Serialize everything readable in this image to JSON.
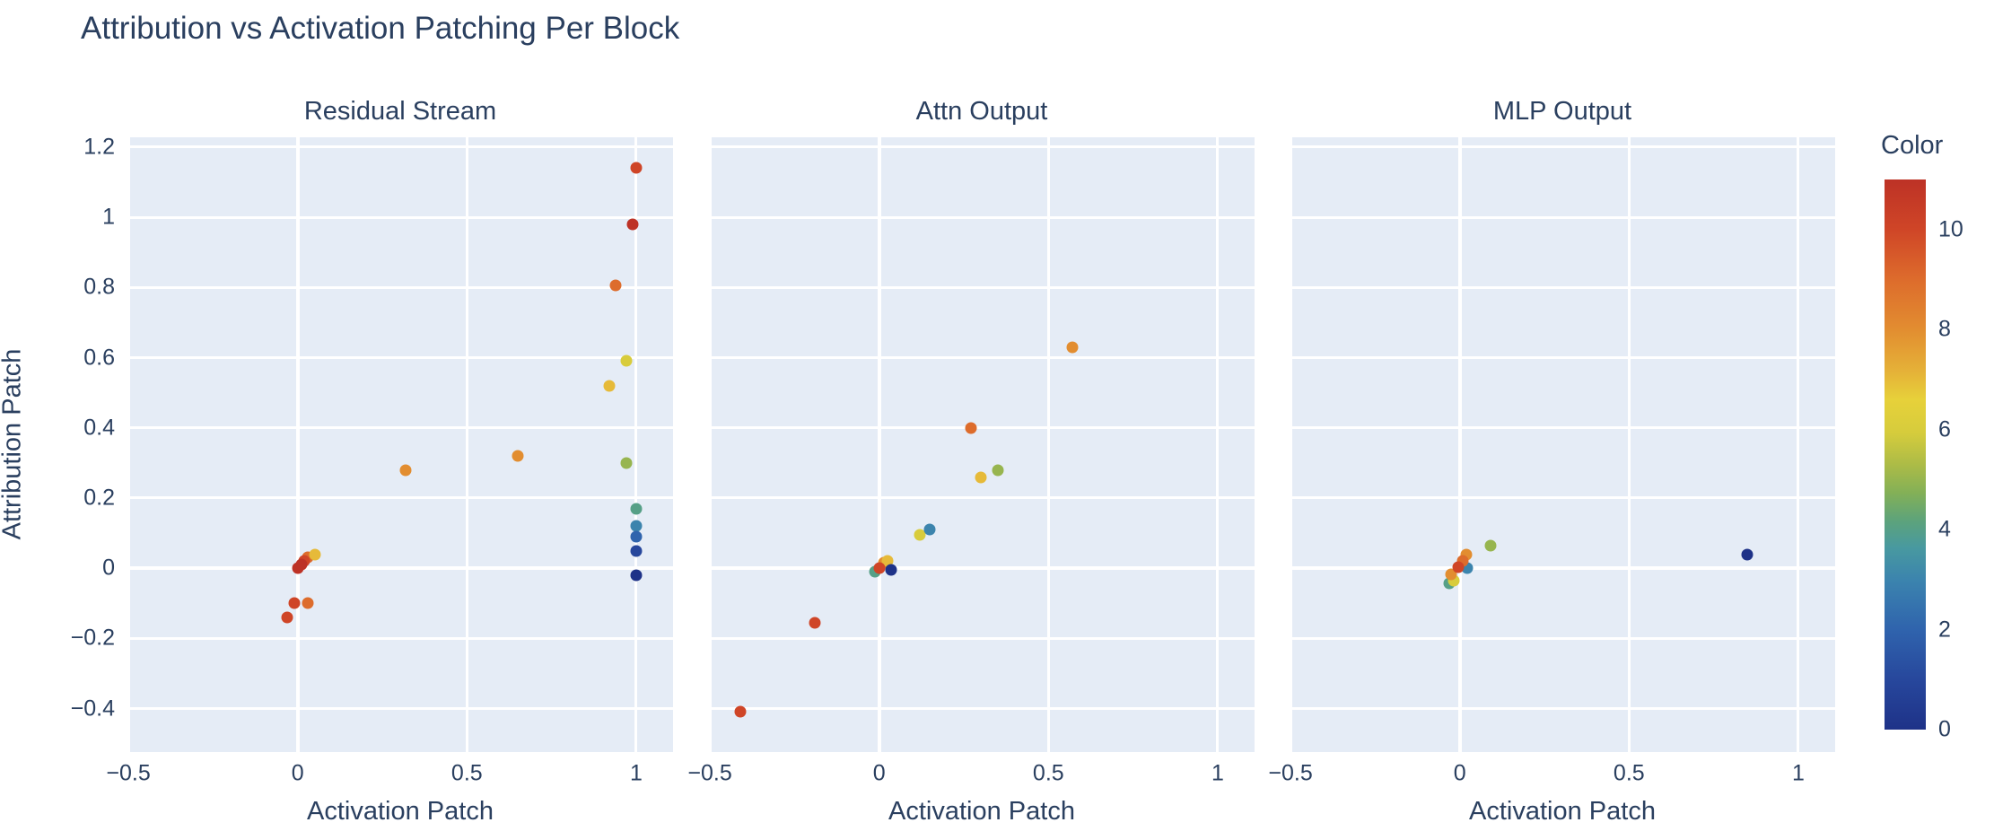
{
  "title": "Attribution vs Activation Patching Per Block",
  "chart_data": {
    "type": "scatter",
    "title": "Attribution vs Activation Patching Per Block",
    "xlabel": "Activation Patch",
    "ylabel": "Attribution Patch",
    "grid": true,
    "plot_bg": "#e5ecf6",
    "text_color": "#2a3f5f",
    "xlim": [
      -0.503,
      1.109
    ],
    "ylim": [
      -0.524,
      1.228
    ],
    "xticks": {
      "values": [
        -0.5,
        0,
        0.5,
        1
      ],
      "labels": [
        "−0.5",
        "0",
        "0.5",
        "1"
      ]
    },
    "yticks": {
      "values": [
        1.2,
        1,
        0.8,
        0.6,
        0.4,
        0.2,
        0,
        -0.2,
        -0.4
      ],
      "labels": [
        "1.2",
        "1",
        "0.8",
        "0.6",
        "0.4",
        "0.2",
        "0",
        "−0.2",
        "−0.4"
      ]
    },
    "colorbar": {
      "title": "Color",
      "vmin": 0,
      "vmax": 11,
      "tick_values": [
        0,
        2,
        4,
        6,
        8,
        10
      ],
      "tick_labels": [
        "0",
        "2",
        "4",
        "6",
        "8",
        "10"
      ],
      "stops": [
        {
          "frac": 0.0,
          "color": "#1e3288"
        },
        {
          "frac": 0.09,
          "color": "#27479c"
        },
        {
          "frac": 0.18,
          "color": "#2f63ad"
        },
        {
          "frac": 0.27,
          "color": "#3b83ae"
        },
        {
          "frac": 0.33,
          "color": "#4899a0"
        },
        {
          "frac": 0.38,
          "color": "#5da37b"
        },
        {
          "frac": 0.43,
          "color": "#83b057"
        },
        {
          "frac": 0.48,
          "color": "#abbb47"
        },
        {
          "frac": 0.54,
          "color": "#d6cc3c"
        },
        {
          "frac": 0.6,
          "color": "#e7d13a"
        },
        {
          "frac": 0.65,
          "color": "#e5b238"
        },
        {
          "frac": 0.73,
          "color": "#e28c30"
        },
        {
          "frac": 0.82,
          "color": "#dd6b2c"
        },
        {
          "frac": 0.91,
          "color": "#cf4527"
        },
        {
          "frac": 1.0,
          "color": "#bd3226"
        }
      ]
    },
    "subplots": [
      {
        "title": "Residual Stream",
        "points": [
          {
            "x": 1.0,
            "y": 1.14,
            "c": 10
          },
          {
            "x": 0.99,
            "y": 0.98,
            "c": 11
          },
          {
            "x": 0.94,
            "y": 0.805,
            "c": 9
          },
          {
            "x": 0.97,
            "y": 0.59,
            "c": 6
          },
          {
            "x": 0.92,
            "y": 0.52,
            "c": 7
          },
          {
            "x": 0.97,
            "y": 0.3,
            "c": 5
          },
          {
            "x": 1.0,
            "y": 0.17,
            "c": 4
          },
          {
            "x": 1.0,
            "y": 0.12,
            "c": 3
          },
          {
            "x": 1.0,
            "y": 0.09,
            "c": 2
          },
          {
            "x": 1.0,
            "y": 0.05,
            "c": 1
          },
          {
            "x": 1.0,
            "y": -0.02,
            "c": 0
          },
          {
            "x": 0.65,
            "y": 0.32,
            "c": 8
          },
          {
            "x": 0.32,
            "y": 0.28,
            "c": 8
          },
          {
            "x": 0.03,
            "y": 0.03,
            "c": 9
          },
          {
            "x": 0.02,
            "y": 0.02,
            "c": 10
          },
          {
            "x": 0.01,
            "y": 0.01,
            "c": 11
          },
          {
            "x": 0.0,
            "y": 0.0,
            "c": 11
          },
          {
            "x": 0.05,
            "y": 0.04,
            "c": 7
          },
          {
            "x": -0.01,
            "y": -0.1,
            "c": 10
          },
          {
            "x": 0.03,
            "y": -0.1,
            "c": 9
          },
          {
            "x": -0.03,
            "y": -0.14,
            "c": 10
          }
        ]
      },
      {
        "title": "Attn Output",
        "points": [
          {
            "x": -0.41,
            "y": -0.41,
            "c": 10
          },
          {
            "x": -0.19,
            "y": -0.155,
            "c": 10
          },
          {
            "x": 0.57,
            "y": 0.63,
            "c": 8
          },
          {
            "x": 0.27,
            "y": 0.4,
            "c": 9
          },
          {
            "x": 0.3,
            "y": 0.26,
            "c": 7
          },
          {
            "x": 0.35,
            "y": 0.28,
            "c": 5
          },
          {
            "x": 0.12,
            "y": 0.095,
            "c": 6
          },
          {
            "x": 0.15,
            "y": 0.11,
            "c": 3
          },
          {
            "x": -0.013,
            "y": -0.01,
            "c": 4
          },
          {
            "x": 0.015,
            "y": 0.016,
            "c": 8
          },
          {
            "x": 0.025,
            "y": 0.022,
            "c": 7
          },
          {
            "x": 0.0,
            "y": 0.0,
            "c": 10
          },
          {
            "x": 0.035,
            "y": -0.005,
            "c": 0
          }
        ]
      },
      {
        "title": "MLP Output",
        "points": [
          {
            "x": 0.85,
            "y": 0.04,
            "c": 0
          },
          {
            "x": 0.09,
            "y": 0.065,
            "c": 5
          },
          {
            "x": -0.032,
            "y": -0.043,
            "c": 4
          },
          {
            "x": -0.019,
            "y": -0.036,
            "c": 6
          },
          {
            "x": -0.027,
            "y": -0.018,
            "c": 8
          },
          {
            "x": 0.021,
            "y": 0.0,
            "c": 3
          },
          {
            "x": 0.02,
            "y": 0.038,
            "c": 8
          },
          {
            "x": 0.008,
            "y": 0.02,
            "c": 9
          },
          {
            "x": -0.005,
            "y": 0.003,
            "c": 10
          }
        ]
      }
    ]
  },
  "layout_lefts": [
    142,
    790,
    1437
  ]
}
